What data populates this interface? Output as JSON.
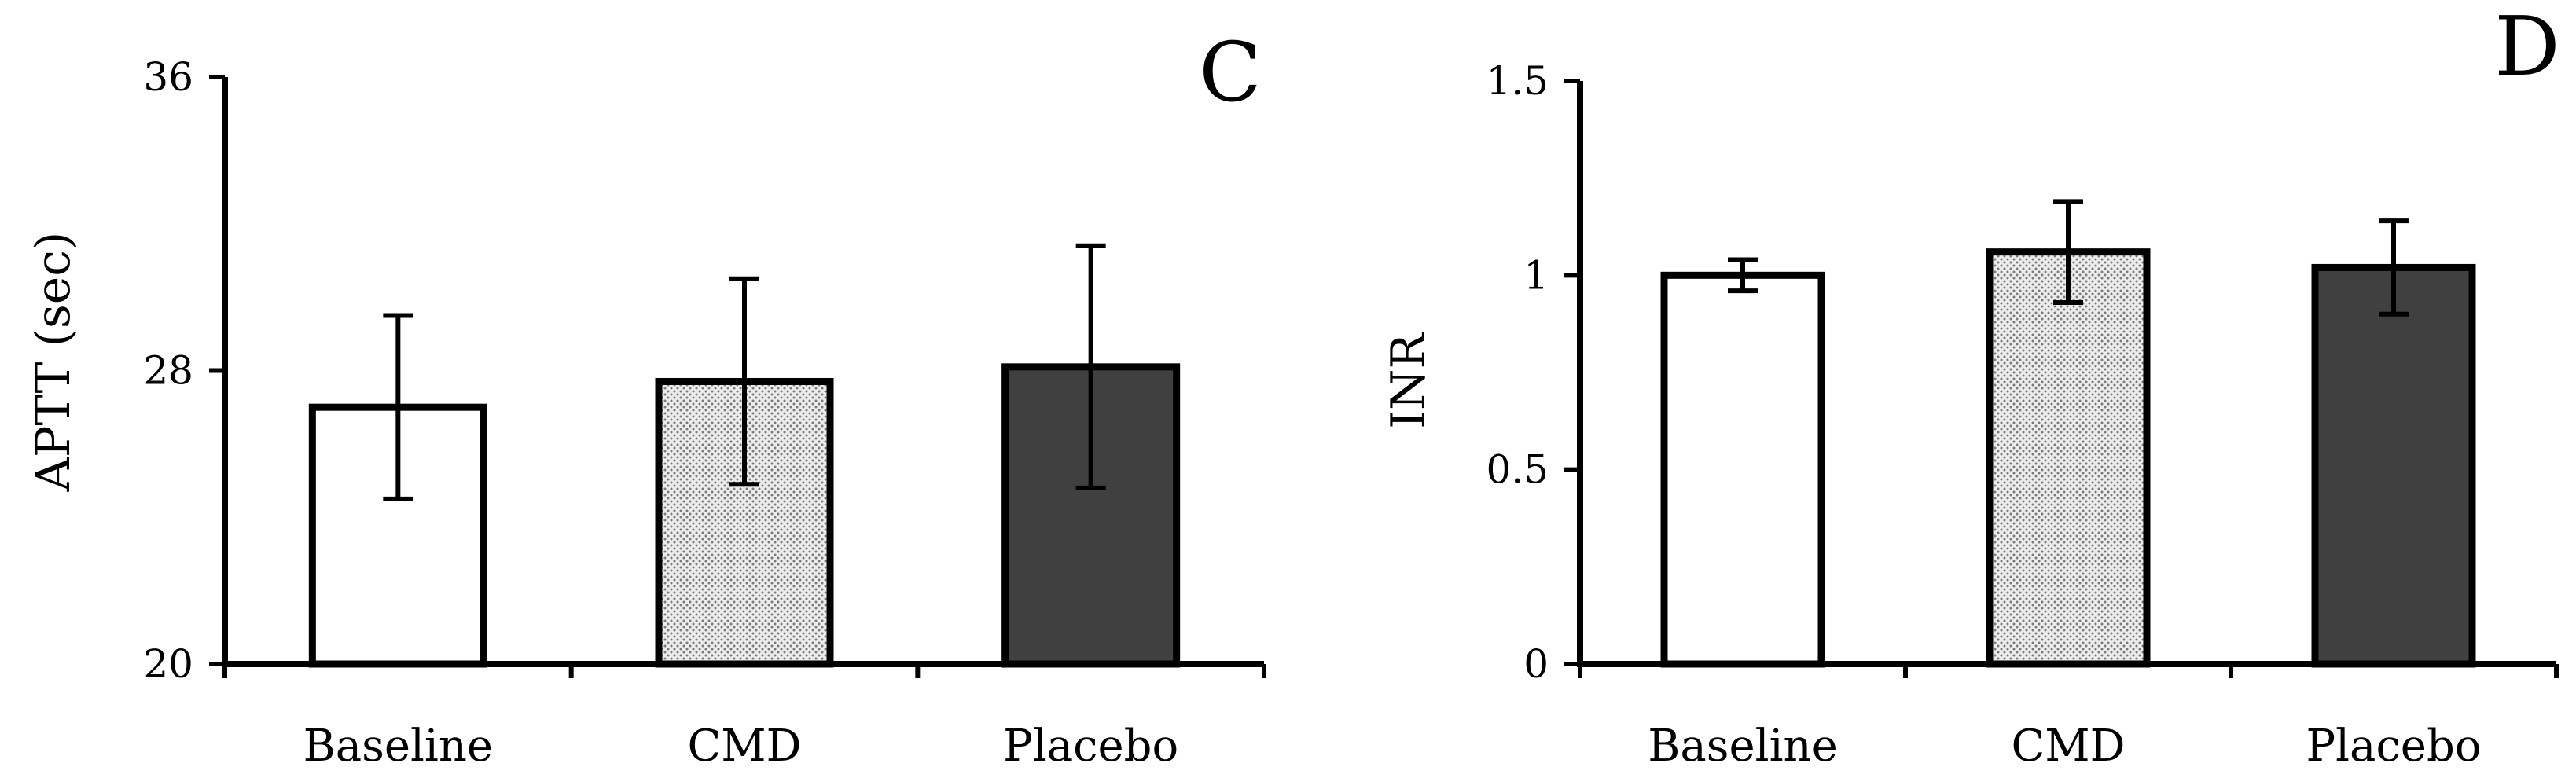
{
  "chart_data": [
    {
      "panel_label": "C",
      "type": "bar",
      "categories": [
        "Baseline",
        "CMD",
        "Placebo"
      ],
      "values": [
        27.0,
        27.7,
        28.1
      ],
      "errors": [
        2.5,
        2.8,
        3.3
      ],
      "ylabel": "APTT (sec)",
      "xlabel": "",
      "ylim": [
        20,
        36
      ],
      "yticks": [
        20,
        28,
        36
      ],
      "ytick_labels": [
        "20",
        "28",
        "36"
      ],
      "bar_styles": [
        "white",
        "dotted",
        "dark"
      ],
      "grid": false
    },
    {
      "panel_label": "D",
      "type": "bar",
      "categories": [
        "Baseline",
        "CMD",
        "Placebo"
      ],
      "values": [
        1.0,
        1.06,
        1.02
      ],
      "errors": [
        0.04,
        0.13,
        0.12
      ],
      "ylabel": "INR",
      "xlabel": "",
      "ylim": [
        0,
        1.5
      ],
      "yticks": [
        0,
        0.5,
        1,
        1.5
      ],
      "ytick_labels": [
        "0",
        "0.5",
        "1",
        "1.5"
      ],
      "bar_styles": [
        "white",
        "dotted",
        "dark"
      ],
      "grid": false
    }
  ],
  "colors": {
    "axis": "#000000",
    "bar_white": "#ffffff",
    "bar_dotted_bg": "#ececec",
    "bar_dotted_dot": "#7a7a7a",
    "bar_dark": "#404040"
  }
}
